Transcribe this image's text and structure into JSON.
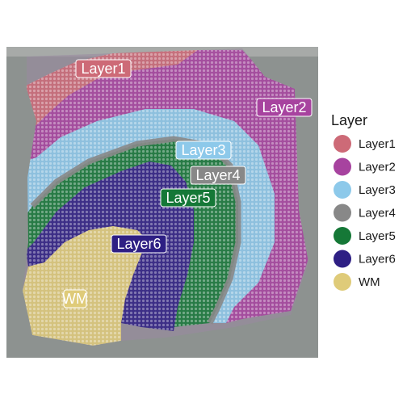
{
  "chart_data": {
    "type": "scatter",
    "description_kind": "spatial transcriptomics spots overlaid on tissue image",
    "legend": {
      "title": "Layer",
      "placement": "right",
      "entries": [
        {
          "label": "Layer1",
          "color": "#CD6A77"
        },
        {
          "label": "Layer2",
          "color": "#A7439F"
        },
        {
          "label": "Layer3",
          "color": "#8DC9EA"
        },
        {
          "label": "Layer4",
          "color": "#888888"
        },
        {
          "label": "Layer5",
          "color": "#157837"
        },
        {
          "label": "Layer6",
          "color": "#2E1F84"
        },
        {
          "label": "WM",
          "color": "#DFCB79"
        }
      ]
    },
    "region_labels": [
      {
        "label": "Layer1",
        "text_color": "#ffffff"
      },
      {
        "label": "Layer2",
        "text_color": "#ffffff"
      },
      {
        "label": "Layer3",
        "text_color": "#ffffff"
      },
      {
        "label": "Layer4",
        "text_color": "#ffffff"
      },
      {
        "label": "Layer5",
        "text_color": "#ffffff"
      },
      {
        "label": "Layer6",
        "text_color": "#ffffff"
      },
      {
        "label": "WM",
        "text_color": "#ffffff"
      }
    ],
    "background_color": "#8d9290",
    "grid": false
  }
}
